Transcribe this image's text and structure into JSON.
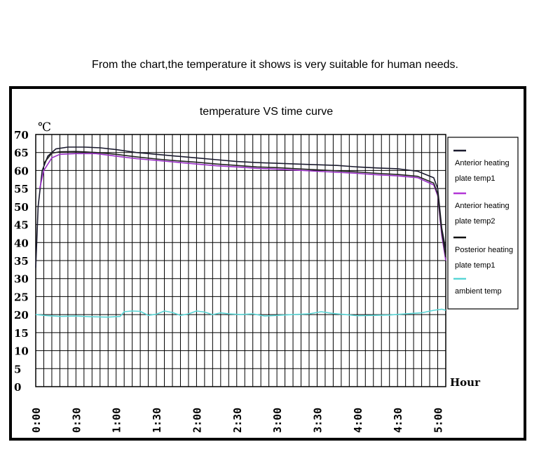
{
  "caption": "From the chart,the temperature it shows is very suitable for human needs.",
  "chart_data": {
    "type": "line",
    "title": "temperature VS time curve",
    "ylabel": "℃",
    "xlabel": "Hour",
    "ylim": [
      0,
      70
    ],
    "xlim": [
      0,
      5.1
    ],
    "y_ticks": [
      "0",
      "5",
      "10",
      "15",
      "20",
      "25",
      "30",
      "35",
      "40",
      "45",
      "50",
      "55",
      "60",
      "65",
      "70"
    ],
    "x_ticks": [
      {
        "x": 0,
        "label": "0:00"
      },
      {
        "x": 0.5,
        "label": "0:30"
      },
      {
        "x": 1.0,
        "label": "1:00"
      },
      {
        "x": 1.5,
        "label": "1:30"
      },
      {
        "x": 2.0,
        "label": "2:00"
      },
      {
        "x": 2.5,
        "label": "2:30"
      },
      {
        "x": 3.0,
        "label": "3:00"
      },
      {
        "x": 3.5,
        "label": "3:30"
      },
      {
        "x": 4.0,
        "label": "4:00"
      },
      {
        "x": 4.5,
        "label": "4:30"
      },
      {
        "x": 5.0,
        "label": "5:00"
      }
    ],
    "grid": true,
    "legend_position": "right",
    "series": [
      {
        "name": "Anterior heating plate temp1",
        "color": "#1a1a2e",
        "points": [
          [
            0,
            33
          ],
          [
            0.03,
            50
          ],
          [
            0.08,
            60
          ],
          [
            0.15,
            64
          ],
          [
            0.25,
            66
          ],
          [
            0.4,
            66.5
          ],
          [
            0.6,
            66.5
          ],
          [
            0.8,
            66.3
          ],
          [
            1.0,
            65.8
          ],
          [
            1.25,
            65
          ],
          [
            1.5,
            64.5
          ],
          [
            1.75,
            64
          ],
          [
            2.0,
            63.5
          ],
          [
            2.25,
            63
          ],
          [
            2.5,
            62.5
          ],
          [
            2.75,
            62.2
          ],
          [
            3.0,
            62
          ],
          [
            3.25,
            61.8
          ],
          [
            3.5,
            61.6
          ],
          [
            3.75,
            61.4
          ],
          [
            4.0,
            61
          ],
          [
            4.25,
            60.7
          ],
          [
            4.5,
            60.5
          ],
          [
            4.75,
            59.8
          ],
          [
            4.95,
            58
          ],
          [
            5.0,
            55
          ],
          [
            5.05,
            44
          ],
          [
            5.1,
            38
          ]
        ]
      },
      {
        "name": "Anterior heating plate temp2",
        "color": "#9b30c8",
        "points": [
          [
            0.05,
            55
          ],
          [
            0.1,
            60
          ],
          [
            0.2,
            63.5
          ],
          [
            0.3,
            64.5
          ],
          [
            0.5,
            64.7
          ],
          [
            0.75,
            64.7
          ],
          [
            1.0,
            64
          ],
          [
            1.25,
            63.3
          ],
          [
            1.5,
            62.8
          ],
          [
            1.75,
            62.3
          ],
          [
            2.0,
            61.8
          ],
          [
            2.25,
            61.3
          ],
          [
            2.5,
            61
          ],
          [
            2.75,
            60.6
          ],
          [
            3.0,
            60.4
          ],
          [
            3.25,
            60.1
          ],
          [
            3.5,
            59.8
          ],
          [
            3.75,
            59.5
          ],
          [
            4.0,
            59.2
          ],
          [
            4.25,
            58.8
          ],
          [
            4.5,
            58.5
          ],
          [
            4.75,
            58
          ],
          [
            4.95,
            56
          ],
          [
            5.0,
            53
          ],
          [
            5.05,
            42
          ],
          [
            5.1,
            35
          ]
        ]
      },
      {
        "name": "Posterior heating plate temp1",
        "color": "#222222",
        "points": [
          [
            0.1,
            62
          ],
          [
            0.2,
            64.8
          ],
          [
            0.3,
            65.2
          ],
          [
            0.5,
            65.3
          ],
          [
            0.75,
            65
          ],
          [
            1.0,
            64.5
          ],
          [
            1.25,
            63.8
          ],
          [
            1.5,
            63.2
          ],
          [
            1.75,
            62.7
          ],
          [
            2.0,
            62.3
          ],
          [
            2.25,
            61.8
          ],
          [
            2.5,
            61.4
          ],
          [
            2.75,
            61
          ],
          [
            3.0,
            60.8
          ],
          [
            3.25,
            60.5
          ],
          [
            3.5,
            60.2
          ],
          [
            3.75,
            59.9
          ],
          [
            4.0,
            59.6
          ],
          [
            4.25,
            59.2
          ],
          [
            4.5,
            58.9
          ],
          [
            4.75,
            58.4
          ],
          [
            4.95,
            56.5
          ],
          [
            5.0,
            53.5
          ],
          [
            5.05,
            43
          ],
          [
            5.1,
            36
          ]
        ]
      },
      {
        "name": "ambient temp",
        "color": "#5ad6d6",
        "points": [
          [
            0,
            20
          ],
          [
            0.15,
            19.7
          ],
          [
            0.3,
            19.5
          ],
          [
            0.5,
            19.6
          ],
          [
            0.7,
            19.4
          ],
          [
            0.9,
            19.3
          ],
          [
            1.05,
            19.5
          ],
          [
            1.1,
            20.8
          ],
          [
            1.2,
            21
          ],
          [
            1.3,
            20.9
          ],
          [
            1.4,
            19.8
          ],
          [
            1.5,
            20.1
          ],
          [
            1.6,
            21
          ],
          [
            1.7,
            20.6
          ],
          [
            1.8,
            19.8
          ],
          [
            1.9,
            20.2
          ],
          [
            2.0,
            21
          ],
          [
            2.1,
            20.7
          ],
          [
            2.2,
            20
          ],
          [
            2.3,
            20.5
          ],
          [
            2.4,
            20.2
          ],
          [
            2.55,
            20
          ],
          [
            2.7,
            20.2
          ],
          [
            2.85,
            19.6
          ],
          [
            3.0,
            19.8
          ],
          [
            3.2,
            20
          ],
          [
            3.4,
            20.2
          ],
          [
            3.55,
            20.8
          ],
          [
            3.7,
            20.3
          ],
          [
            3.85,
            20
          ],
          [
            4.0,
            19.7
          ],
          [
            4.2,
            19.8
          ],
          [
            4.4,
            19.9
          ],
          [
            4.6,
            20.2
          ],
          [
            4.8,
            20.5
          ],
          [
            4.95,
            21.2
          ],
          [
            5.05,
            21.5
          ],
          [
            5.1,
            21.2
          ]
        ]
      }
    ],
    "legend": [
      {
        "line1": "Anterior heating",
        "line2": "plate temp1",
        "color": "#1a1a2e"
      },
      {
        "line1": "Anterior heating",
        "line2": "plate temp2",
        "color": "#b236d6"
      },
      {
        "line1": "Posterior heating",
        "line2": "plate temp1",
        "color": "#111111"
      },
      {
        "line1": "ambient temp",
        "line2": "",
        "color": "#5ad6d6"
      }
    ]
  }
}
